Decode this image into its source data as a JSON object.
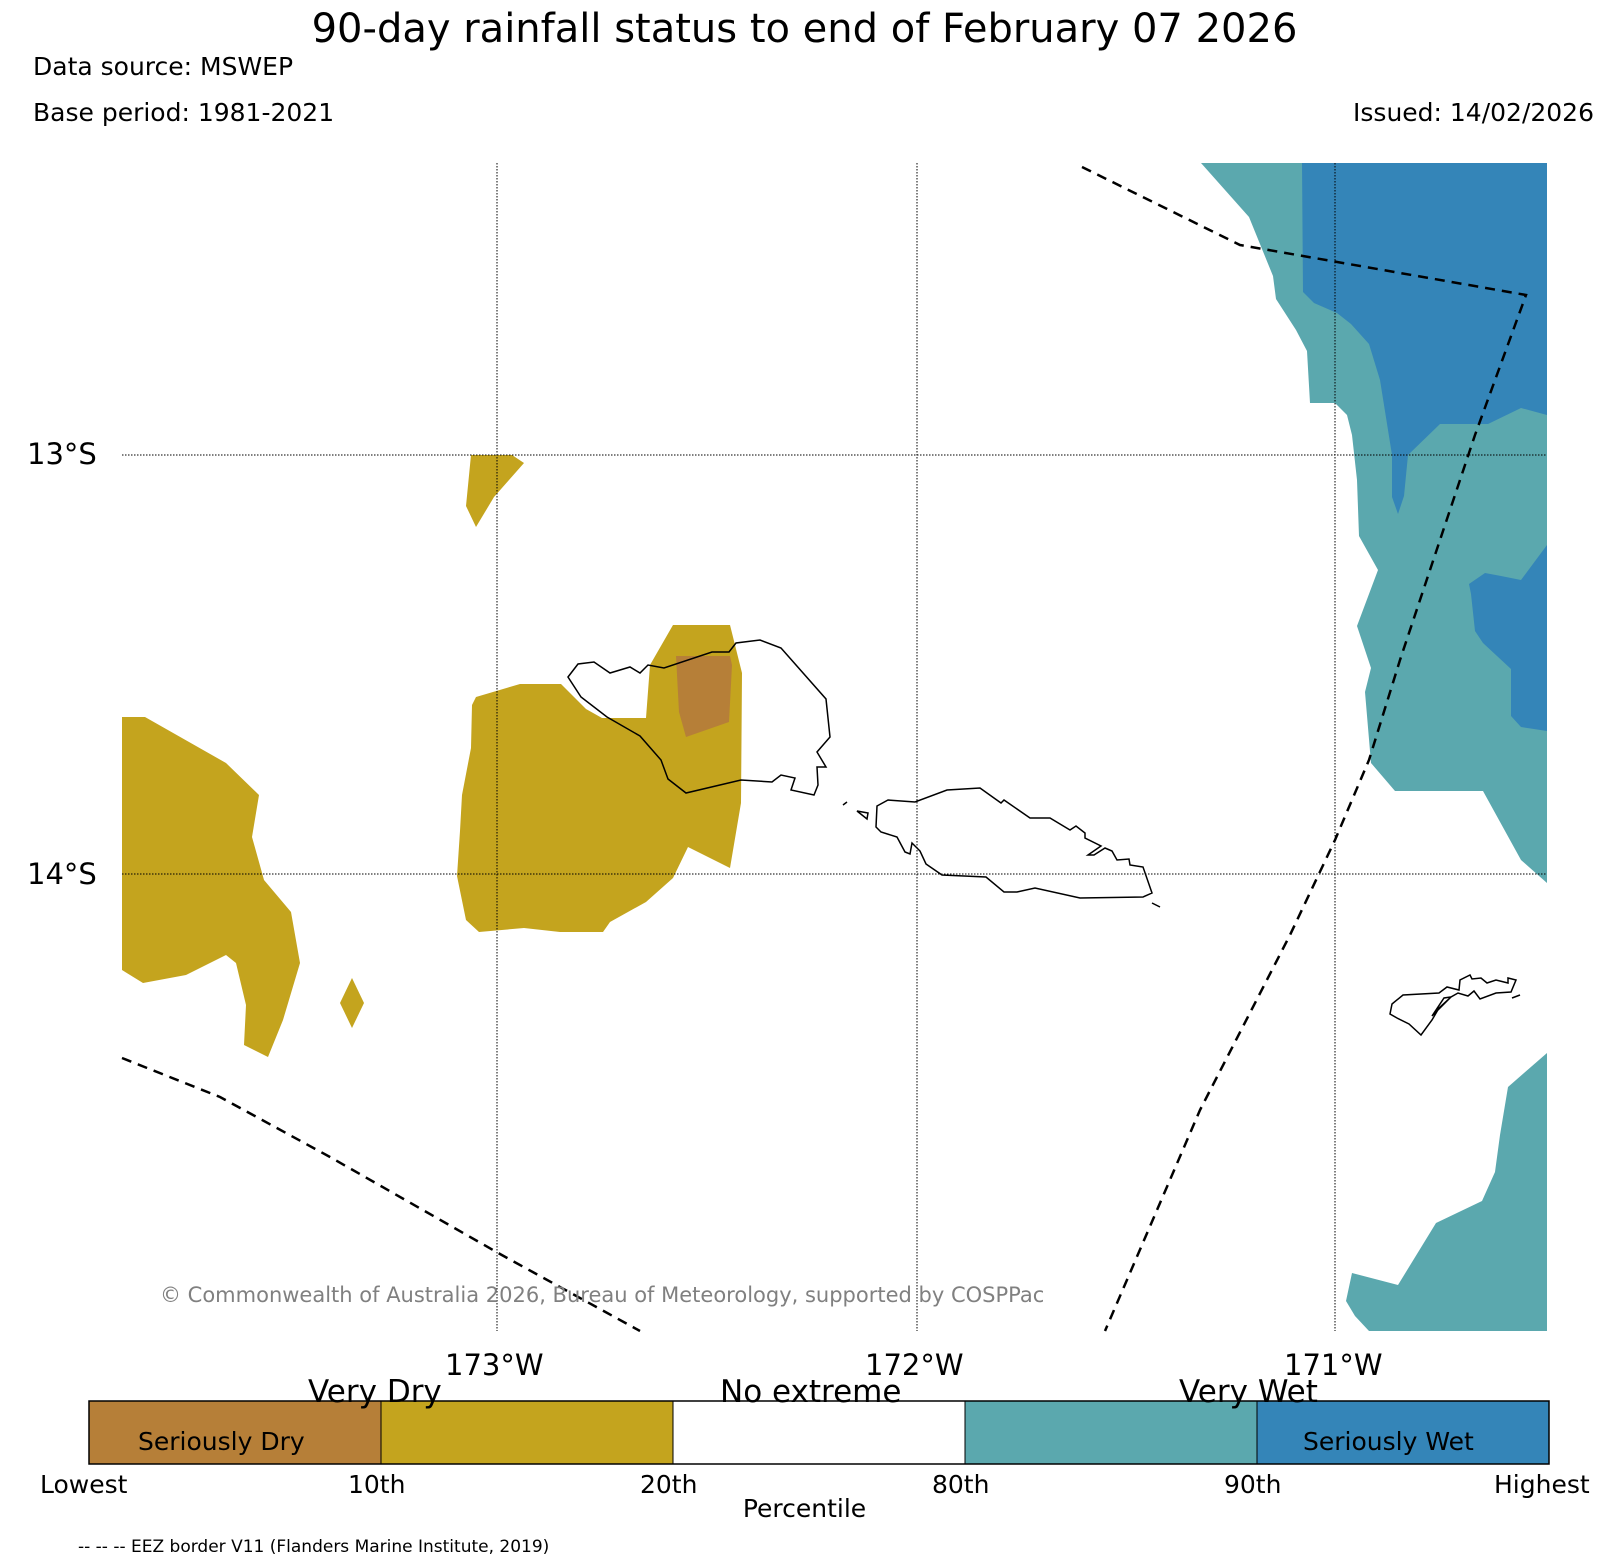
{
  "title": "90-day rainfall status to end of February 07 2026",
  "data_source": "Data source: MSWEP",
  "base_period": "Base period: 1981-2021",
  "issued": "Issued: 14/02/2026",
  "copyright": "© Commonwealth of Australia 2026, Bureau of Meteorology, supported by COSPPac",
  "latitude_labels": [
    "13°S",
    "14°S"
  ],
  "longitude_labels": [
    "173°W",
    "172°W",
    "171°W"
  ],
  "legend": {
    "categories": {
      "very_dry": "Very Dry",
      "no_extreme": "No extreme",
      "very_wet": "Very Wet"
    },
    "segments": [
      {
        "label": "Seriously Dry",
        "color": "#b67f38"
      },
      {
        "label": "",
        "color": "#c4a41e"
      },
      {
        "label": "",
        "color": "#ffffff"
      },
      {
        "label": "",
        "color": "#5ba8ae"
      },
      {
        "label": "Seriously Wet",
        "color": "#3485b8"
      }
    ],
    "ticks": [
      "Lowest",
      "10th",
      "20th",
      "80th",
      "90th",
      "Highest"
    ],
    "axis_label": "Percentile"
  },
  "eez_note": "-- -- -- EEZ border V11 (Flanders Marine Institute, 2019)",
  "colors": {
    "seriously_dry": "#b67f38",
    "very_dry": "#c4a41e",
    "very_wet": "#5ba8ae",
    "seriously_wet": "#3485b8"
  }
}
